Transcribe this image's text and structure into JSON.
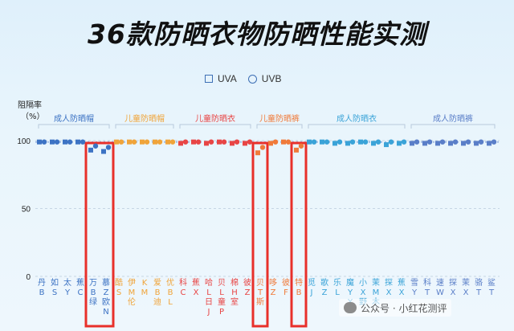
{
  "title": "36款防晒衣物防晒性能实测",
  "watermark": "公众号 · 小红花测评",
  "colors": {
    "accent": "#3d6fb5",
    "highlight": "#e8302a",
    "grid": "#c6d6e4"
  },
  "chart_data": {
    "type": "scatter",
    "title": "36款防晒衣物防晒性能实测",
    "ylabel": "阻隔率（%）",
    "ylim": [
      0,
      100
    ],
    "yticks": [
      0,
      50,
      100
    ],
    "legend": {
      "position": "top-center",
      "entries": [
        "UVA",
        "UVB"
      ]
    },
    "groups": [
      {
        "label": "成人防晒帽",
        "start": 0,
        "end": 5,
        "color": "#3d73c4"
      },
      {
        "label": "儿童防晒帽",
        "start": 6,
        "end": 10,
        "color": "#f0a43a"
      },
      {
        "label": "儿童防晒衣",
        "start": 11,
        "end": 16,
        "color": "#e84545"
      },
      {
        "label": "儿童防晒裤",
        "start": 17,
        "end": 20,
        "color": "#f07a3a"
      },
      {
        "label": "成人防晒衣",
        "start": 21,
        "end": 28,
        "color": "#3aa3d8"
      },
      {
        "label": "成人防晒裤",
        "start": 29,
        "end": 35,
        "color": "#5a7ec8"
      }
    ],
    "categories": [
      [
        "丹",
        "B"
      ],
      [
        "如",
        "S"
      ],
      [
        "太",
        "Y"
      ],
      [
        "蕉",
        "C"
      ],
      [
        "万",
        "B",
        "绿"
      ],
      [
        "慕",
        "Z",
        "欧",
        "N"
      ],
      [
        "酷",
        "S"
      ],
      [
        "伊",
        "M",
        "伦"
      ],
      [
        "K",
        "M"
      ],
      [
        "爱",
        "B",
        "迪"
      ],
      [
        "优",
        "B",
        "L"
      ],
      [
        "科",
        "C"
      ],
      [
        "蕉",
        "X"
      ],
      [
        "哈",
        "L",
        "日",
        "J"
      ],
      [
        "贝",
        "L",
        "童",
        "P"
      ],
      [
        "棉",
        "H",
        "室"
      ],
      [
        "彼",
        "Z"
      ],
      [
        "贝",
        "T",
        "斯"
      ],
      [
        "哆",
        "Z"
      ],
      [
        "彼",
        "F"
      ],
      [
        "特",
        "B"
      ],
      [
        "觅",
        "J"
      ],
      [
        "歌",
        "Z"
      ],
      [
        "乐",
        "L"
      ],
      [
        "魔",
        "Y",
        "Y"
      ],
      [
        "小",
        "X",
        "野"
      ],
      [
        "茉",
        "M",
        "木"
      ],
      [
        "探",
        "X"
      ],
      [
        "蕉",
        "X"
      ],
      [
        "雪",
        "Y"
      ],
      [
        "科",
        "T"
      ],
      [
        "速",
        "W"
      ],
      [
        "探",
        "X"
      ],
      [
        "茉",
        "X"
      ],
      [
        "骆",
        "T"
      ],
      [
        "鲨",
        "T"
      ]
    ],
    "series": [
      {
        "name": "UVA",
        "values": [
          99,
          99,
          99,
          99,
          93,
          92,
          99,
          99,
          99,
          99,
          99,
          98,
          99,
          98,
          99,
          98,
          98,
          91,
          98,
          99,
          93,
          99,
          99,
          98,
          98,
          99,
          98,
          97,
          98,
          98,
          98,
          98,
          98,
          98,
          98,
          98
        ]
      },
      {
        "name": "UVB",
        "values": [
          99,
          99,
          99,
          99,
          96,
          95,
          99,
          99,
          99,
          99,
          99,
          99,
          99,
          99,
          99,
          99,
          99,
          95,
          99,
          99,
          96,
          99,
          99,
          99,
          99,
          99,
          99,
          99,
          99,
          99,
          99,
          99,
          99,
          99,
          99,
          99
        ]
      }
    ],
    "highlighted": [
      4,
      5,
      17,
      20
    ]
  }
}
